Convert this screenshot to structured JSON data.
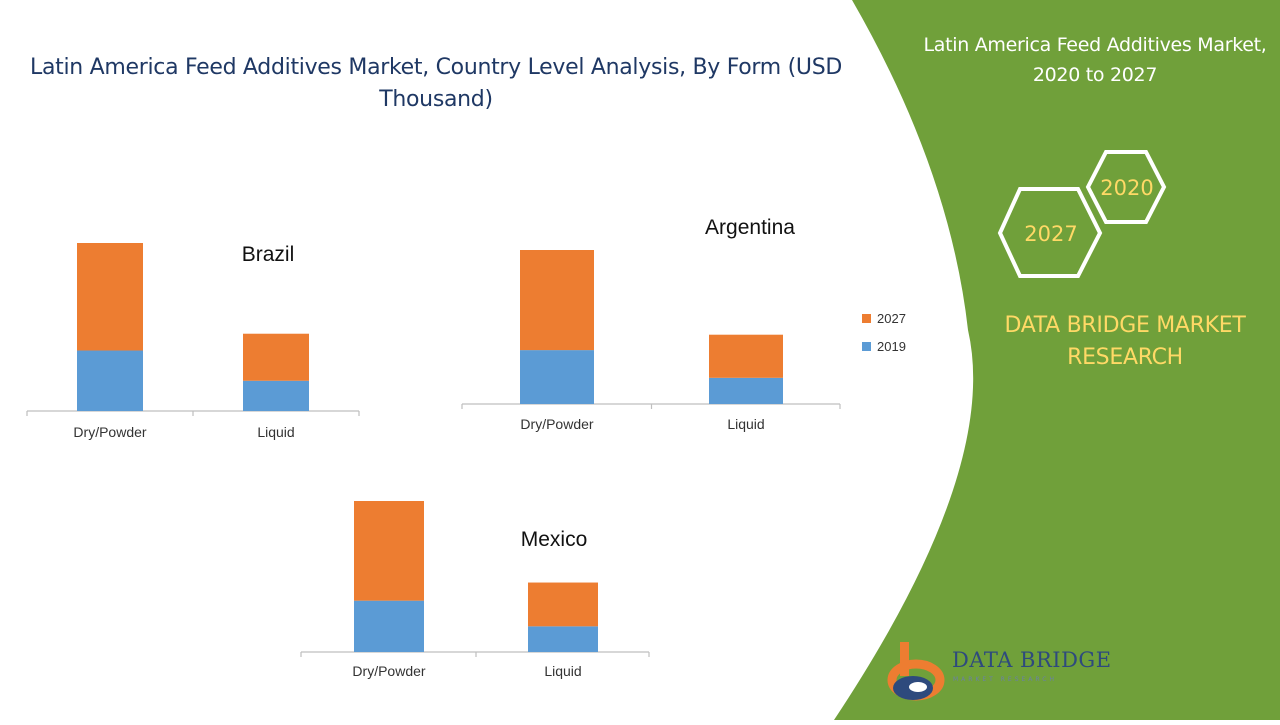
{
  "title": "Latin America Feed Additives Market, Country Level Analysis, By Form (USD Thousand)",
  "sidebar": {
    "title": "Latin America Feed Additives Market, 2020 to 2027",
    "hex_badges": [
      "2020",
      "2027"
    ],
    "brand": "DATA BRIDGE MARKET RESEARCH",
    "logo_name": "DATA BRIDGE",
    "logo_sub": "MARKET RESEARCH"
  },
  "colors": {
    "series_2019": "#5B9BD5",
    "series_2027": "#ED7D31",
    "panel_green": "#70A03A",
    "brand_yellow": "#FFD966",
    "title_navy": "#1F3864"
  },
  "legend": [
    {
      "label": "2027",
      "color": "#ED7D31"
    },
    {
      "label": "2019",
      "color": "#5B9BD5"
    }
  ],
  "chart_data": [
    {
      "type": "bar",
      "stacked": true,
      "title": "Brazil",
      "categories": [
        "Dry/Powder",
        "Liquid"
      ],
      "series": [
        {
          "name": "2019",
          "values": [
            36,
            18
          ]
        },
        {
          "name": "2027",
          "values": [
            64,
            28
          ]
        }
      ],
      "ylim": [
        0,
        100
      ],
      "grid": false
    },
    {
      "type": "bar",
      "stacked": true,
      "title": "Argentina",
      "categories": [
        "Dry/Powder",
        "Liquid"
      ],
      "series": [
        {
          "name": "2019",
          "values": [
            35,
            17
          ]
        },
        {
          "name": "2027",
          "values": [
            65,
            28
          ]
        }
      ],
      "ylim": [
        0,
        100
      ],
      "grid": false
    },
    {
      "type": "bar",
      "stacked": true,
      "title": "Mexico",
      "categories": [
        "Dry/Powder",
        "Liquid"
      ],
      "series": [
        {
          "name": "2019",
          "values": [
            34,
            17
          ]
        },
        {
          "name": "2027",
          "values": [
            66,
            29
          ]
        }
      ],
      "ylim": [
        0,
        100
      ],
      "grid": false
    }
  ]
}
